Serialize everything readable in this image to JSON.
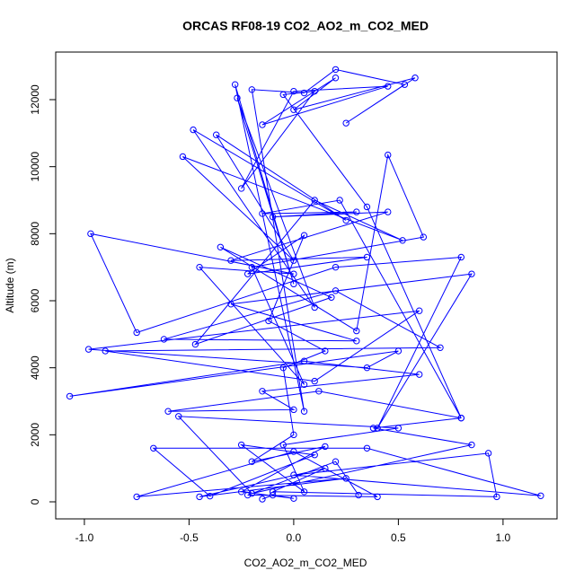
{
  "chart_data": {
    "type": "line",
    "title": "ORCAS RF08-19 CO2_AO2_m_CO2_MED",
    "xlabel": "CO2_AO2_m_CO2_MED",
    "ylabel": "Altitude (m)",
    "x": [
      0.31,
      0.2,
      -0.22,
      0.4,
      0.0,
      -0.75,
      0.25,
      -0.45,
      0.15,
      -0.1,
      0.97,
      0.93,
      0.0,
      1.18,
      0.35,
      -0.67,
      -0.4,
      0.1,
      -0.25,
      0.05,
      -0.05,
      0.5,
      -0.55,
      -0.2,
      0.85,
      0.38,
      0.8,
      0.12,
      -0.6,
      0.0,
      -0.15,
      0.6,
      0.05,
      -1.07,
      0.5,
      0.35,
      -0.98,
      0.6,
      0.1,
      -0.9,
      0.7,
      0.2,
      -0.62,
      0.3,
      -0.3,
      0.85,
      0.4,
      0.8,
      0.2,
      -0.75,
      -0.97,
      0.0,
      -0.45,
      0.05,
      -0.2,
      0.62,
      0.45,
      0.3,
      -0.35,
      0.18,
      -0.47,
      0.1,
      0.52,
      -0.53,
      0.0,
      -0.37,
      0.25,
      -0.48,
      0.1,
      -0.27,
      0.0,
      -0.28,
      0.05,
      -0.2,
      0.05,
      0.2,
      0.53,
      0.25,
      0.58,
      0.0,
      0.2,
      -0.15,
      0.45,
      0.0,
      -0.25,
      0.1,
      -0.05,
      0.35,
      0.8,
      0.22,
      -0.15,
      0.3,
      -0.1,
      0.45,
      -0.3,
      0.35,
      -0.22,
      0.05,
      -0.12,
      0.15,
      -0.05,
      0.0,
      -0.2,
      0.15,
      -0.25,
      0.0,
      -0.1,
      -0.15
    ],
    "series": [
      {
        "name": "CO2_AO2_m_CO2_MED",
        "color": "#0000ff",
        "values": [
          200,
          1200,
          200,
          150,
          1500,
          150,
          700,
          150,
          1000,
          300,
          150,
          1450,
          800,
          180,
          1600,
          1600,
          170,
          1400,
          1700,
          300,
          1700,
          2200,
          2550,
          250,
          1700,
          2200,
          2500,
          3300,
          2700,
          2750,
          3300,
          3800,
          4200,
          3150,
          4500,
          4000,
          4550,
          5700,
          3600,
          4500,
          4600,
          6300,
          4850,
          4800,
          5900,
          6800,
          2200,
          7300,
          7000,
          5050,
          8000,
          6800,
          7000,
          3500,
          7000,
          7900,
          10350,
          5100,
          7600,
          6100,
          4700,
          9000,
          7800,
          10300,
          7200,
          10950,
          8400,
          11100,
          5800,
          12050,
          6500,
          12450,
          2700,
          12300,
          12200,
          12900,
          12450,
          11300,
          12650,
          11700,
          12650,
          11250,
          12400,
          12250,
          9350,
          12250,
          12150,
          8800,
          2500,
          9000,
          8600,
          8650,
          8500,
          8650,
          7200,
          7300,
          6800,
          7950,
          5400,
          4500,
          4000,
          2000,
          1200,
          1650,
          300,
          100,
          200,
          80
        ]
      }
    ],
    "xlim": [
      -1.137,
      1.258
    ],
    "ylim": [
      -509,
      13420
    ],
    "xticks": [
      {
        "value": -1.0,
        "label": "-1.0"
      },
      -0.5,
      {
        "value": 0.0,
        "label": "0.0"
      },
      0.5,
      {
        "value": 1.0,
        "label": "1.0"
      }
    ],
    "yticks": [
      0,
      2000,
      4000,
      6000,
      8000,
      10000,
      12000
    ]
  }
}
